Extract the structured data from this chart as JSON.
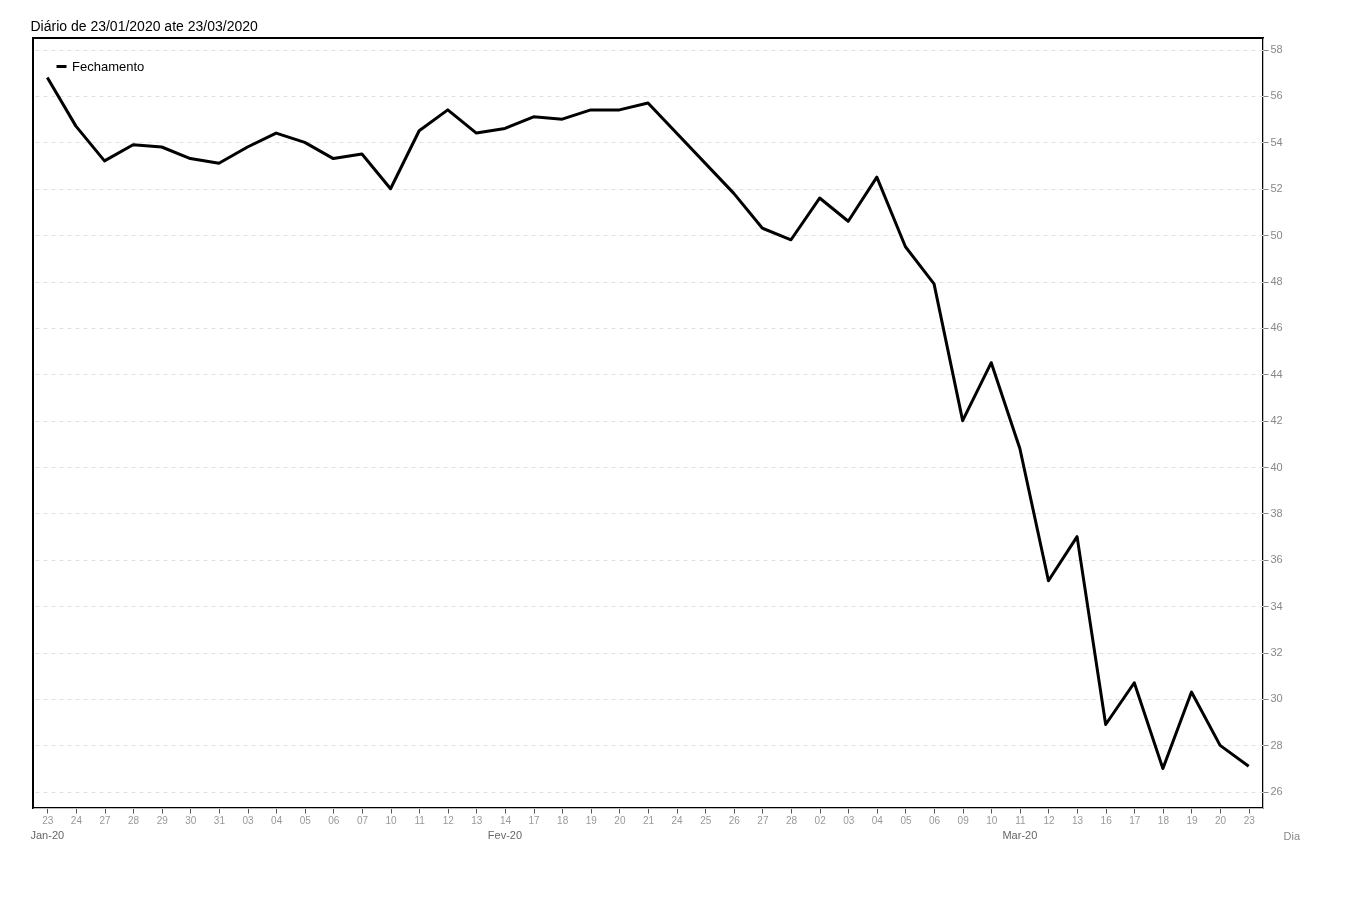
{
  "chart_data": {
    "type": "line",
    "title": "Diário de 23/01/2020 ate 23/03/2020",
    "xlabel": "Dia",
    "categories": [
      "23",
      "24",
      "27",
      "28",
      "29",
      "30",
      "31",
      "03",
      "04",
      "05",
      "06",
      "07",
      "10",
      "11",
      "12",
      "13",
      "14",
      "17",
      "18",
      "19",
      "20",
      "21",
      "24",
      "25",
      "26",
      "27",
      "28",
      "02",
      "03",
      "04",
      "05",
      "06",
      "09",
      "10",
      "11",
      "12",
      "13",
      "16",
      "17",
      "18",
      "19",
      "20",
      "23"
    ],
    "series": [
      {
        "name": "Fechamento",
        "color": "#000000",
        "values": [
          56.8,
          54.7,
          53.2,
          53.9,
          53.8,
          53.3,
          53.1,
          53.8,
          54.4,
          54.0,
          53.3,
          53.5,
          52.0,
          54.5,
          55.4,
          54.4,
          54.6,
          55.1,
          55.0,
          55.4,
          55.4,
          55.7,
          null,
          null,
          51.8,
          50.3,
          49.8,
          51.6,
          50.6,
          52.5,
          49.5,
          47.9,
          42.0,
          44.5,
          40.8,
          35.1,
          37.0,
          28.9,
          30.7,
          27.0,
          30.3,
          28.0,
          27.1
        ]
      }
    ],
    "ylim": [
      25.3,
      58.5
    ],
    "yticks": [
      26,
      28,
      30,
      32,
      34,
      36,
      38,
      40,
      42,
      44,
      46,
      48,
      50,
      52,
      54,
      56,
      58
    ],
    "annotations": [
      "Jan-20",
      "Fev-20",
      "Mar-20"
    ],
    "grid": "y",
    "legend": "top left",
    "line_style": "solid",
    "marker": "none"
  }
}
